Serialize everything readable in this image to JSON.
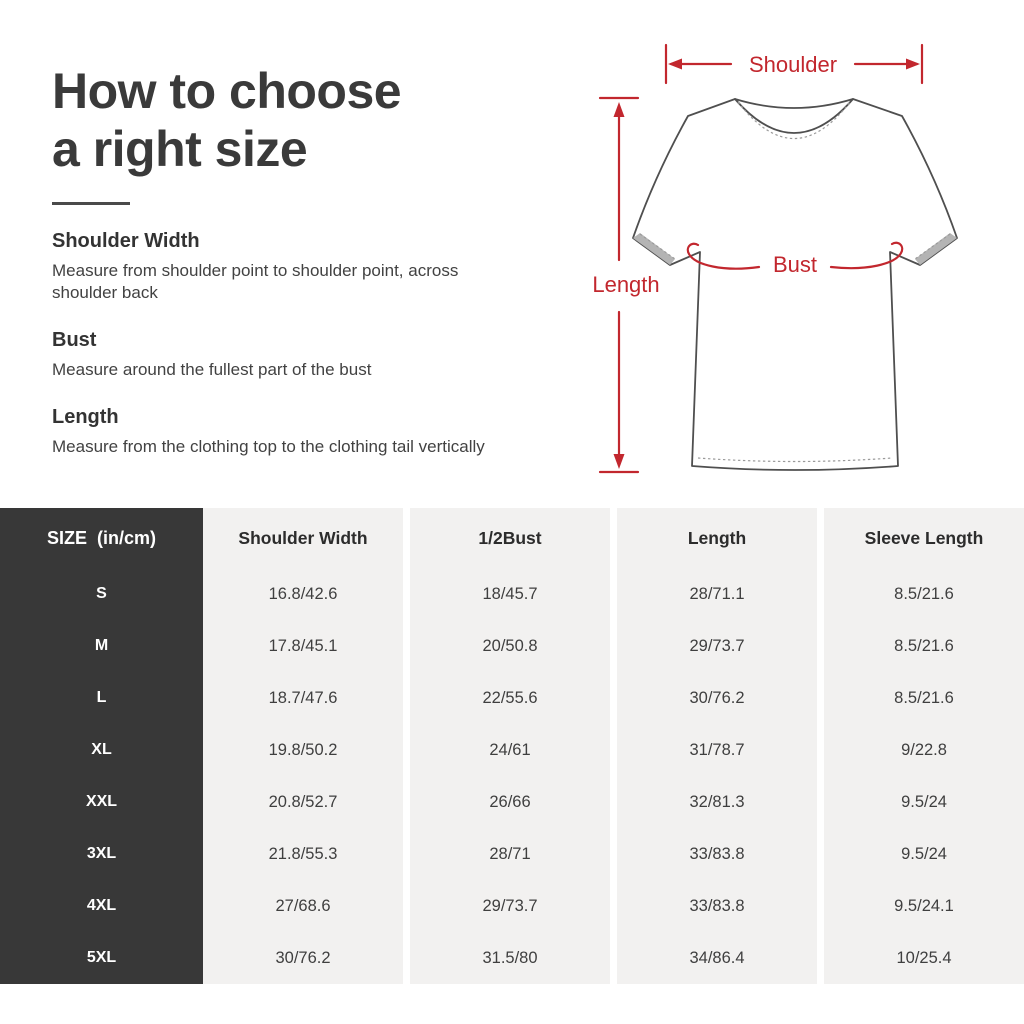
{
  "colors": {
    "accent_red": "#c2272e",
    "title_dark": "#3a3a3a",
    "table_dark_bg": "#383838",
    "table_cell_bg": "#f2f1f0",
    "shirt_outline": "#4f4f4f"
  },
  "intro": {
    "title_line1": "How to choose",
    "title_line2": "a right size",
    "sections": [
      {
        "heading": "Shoulder Width",
        "body": "Measure from shoulder point to shoulder point, across shoulder back"
      },
      {
        "heading": "Bust",
        "body": "Measure around the fullest part of the bust"
      },
      {
        "heading": "Length",
        "body": "Measure from the clothing top to the clothing tail vertically"
      }
    ]
  },
  "diagram": {
    "labels": {
      "shoulder": "Shoulder",
      "length": "Length",
      "bust": "Bust"
    }
  },
  "size_table": {
    "size_header": "SIZE  (in/cm)",
    "columns": [
      "Shoulder Width",
      "1/2Bust",
      "Length",
      "Sleeve Length"
    ],
    "rows": [
      {
        "size": "S",
        "values": [
          "16.8/42.6",
          "18/45.7",
          "28/71.1",
          "8.5/21.6"
        ]
      },
      {
        "size": "M",
        "values": [
          "17.8/45.1",
          "20/50.8",
          "29/73.7",
          "8.5/21.6"
        ]
      },
      {
        "size": "L",
        "values": [
          "18.7/47.6",
          "22/55.6",
          "30/76.2",
          "8.5/21.6"
        ]
      },
      {
        "size": "XL",
        "values": [
          "19.8/50.2",
          "24/61",
          "31/78.7",
          "9/22.8"
        ]
      },
      {
        "size": "XXL",
        "values": [
          "20.8/52.7",
          "26/66",
          "32/81.3",
          "9.5/24"
        ]
      },
      {
        "size": "3XL",
        "values": [
          "21.8/55.3",
          "28/71",
          "33/83.8",
          "9.5/24"
        ]
      },
      {
        "size": "4XL",
        "values": [
          "27/68.6",
          "29/73.7",
          "33/83.8",
          "9.5/24.1"
        ]
      },
      {
        "size": "5XL",
        "values": [
          "30/76.2",
          "31.5/80",
          "34/86.4",
          "10/25.4"
        ]
      }
    ]
  }
}
